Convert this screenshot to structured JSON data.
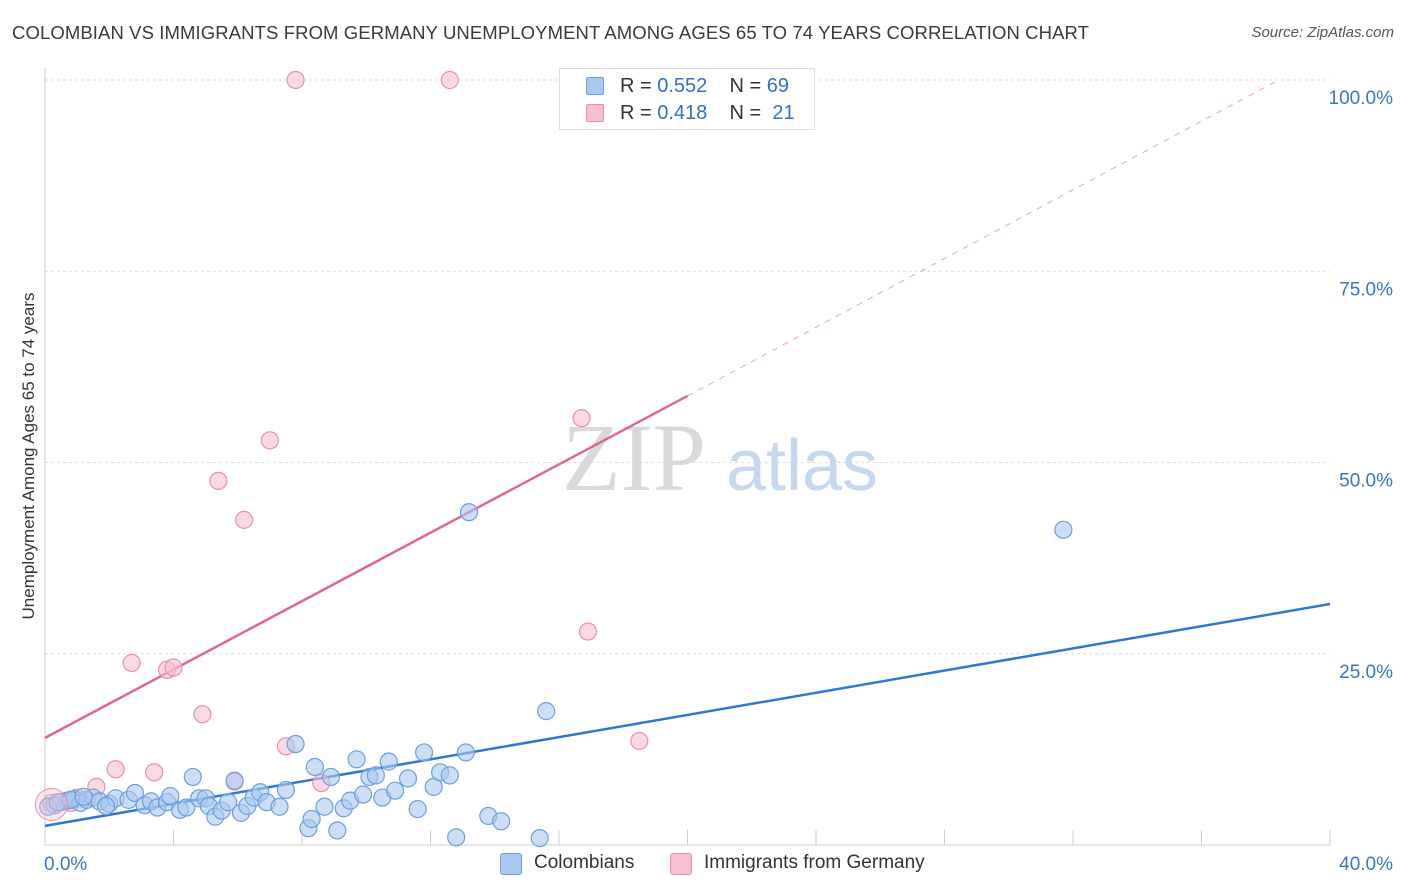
{
  "title": "COLOMBIAN VS IMMIGRANTS FROM GERMANY UNEMPLOYMENT AMONG AGES 65 TO 74 YEARS CORRELATION CHART",
  "source": "Source: ZipAtlas.com",
  "watermark": {
    "zip": "ZIP",
    "atlas": "atlas"
  },
  "legend": {
    "r_label": "R = ",
    "n_label": "N = ",
    "series": [
      {
        "r": "0.552",
        "n": "69"
      },
      {
        "r": "0.418",
        "n": "21"
      }
    ]
  },
  "bottom_legend": [
    "Colombians",
    "Immigrants from Germany"
  ],
  "colors": {
    "blue_fill": "#a9c8f0",
    "blue_stroke": "#6e9fdc",
    "blue_line": "#2e78d2",
    "pink_fill": "#f7c0d2",
    "pink_stroke": "#e88fae",
    "pink_line": "#e0668e",
    "axis_text": "#3a75c4",
    "grid": "#dcdcdc"
  },
  "chart_data": {
    "type": "scatter",
    "title": "COLOMBIAN VS IMMIGRANTS FROM GERMANY UNEMPLOYMENT AMONG AGES 65 TO 74 YEARS CORRELATION CHART",
    "xlabel": "",
    "ylabel": "Unemployment Among Ages 65 to 74 years",
    "xlim": [
      0,
      40
    ],
    "ylim": [
      0,
      100
    ],
    "x_tick_labels": [
      {
        "value": 0,
        "label": "0.0%"
      },
      {
        "value": 40,
        "label": "40.0%"
      }
    ],
    "y_tick_labels": [
      {
        "value": 25,
        "label": "25.0%"
      },
      {
        "value": 50,
        "label": "50.0%"
      },
      {
        "value": 75,
        "label": "75.0%"
      },
      {
        "value": 100,
        "label": "100.0%"
      }
    ],
    "x_minor_ticks": [
      4,
      8,
      12,
      16,
      20,
      24,
      28,
      32,
      36,
      40
    ],
    "series": [
      {
        "name": "Colombians",
        "color": "#6e9fdc",
        "points": [
          [
            0.3,
            5.2
          ],
          [
            0.5,
            5.6
          ],
          [
            0.7,
            5.8
          ],
          [
            0.9,
            6.0
          ],
          [
            1.1,
            5.5
          ],
          [
            1.3,
            5.9
          ],
          [
            1.5,
            6.2
          ],
          [
            1.7,
            5.7
          ],
          [
            2.0,
            5.4
          ],
          [
            2.2,
            6.1
          ],
          [
            2.6,
            5.9
          ],
          [
            2.8,
            6.8
          ],
          [
            3.1,
            5.2
          ],
          [
            3.3,
            5.7
          ],
          [
            3.5,
            4.9
          ],
          [
            3.8,
            5.6
          ],
          [
            3.9,
            6.4
          ],
          [
            4.2,
            4.6
          ],
          [
            4.4,
            4.9
          ],
          [
            4.6,
            8.9
          ],
          [
            4.8,
            6.1
          ],
          [
            5.0,
            6.1
          ],
          [
            5.1,
            5.1
          ],
          [
            5.3,
            3.7
          ],
          [
            5.5,
            4.5
          ],
          [
            5.7,
            5.6
          ],
          [
            5.9,
            8.4
          ],
          [
            6.1,
            4.2
          ],
          [
            6.3,
            5.1
          ],
          [
            6.5,
            6.2
          ],
          [
            6.7,
            6.9
          ],
          [
            6.9,
            5.6
          ],
          [
            7.3,
            5.0
          ],
          [
            7.5,
            7.2
          ],
          [
            7.8,
            13.2
          ],
          [
            8.2,
            2.2
          ],
          [
            8.3,
            3.4
          ],
          [
            8.4,
            10.2
          ],
          [
            8.7,
            5.0
          ],
          [
            8.9,
            8.9
          ],
          [
            9.1,
            1.9
          ],
          [
            9.3,
            4.8
          ],
          [
            9.5,
            5.8
          ],
          [
            9.7,
            11.2
          ],
          [
            9.9,
            6.6
          ],
          [
            10.1,
            8.9
          ],
          [
            10.3,
            9.1
          ],
          [
            10.5,
            6.2
          ],
          [
            10.7,
            10.9
          ],
          [
            10.9,
            7.1
          ],
          [
            11.3,
            8.7
          ],
          [
            11.6,
            4.7
          ],
          [
            11.8,
            12.1
          ],
          [
            12.1,
            7.6
          ],
          [
            12.3,
            9.5
          ],
          [
            12.6,
            9.1
          ],
          [
            12.8,
            1.0
          ],
          [
            13.1,
            12.1
          ],
          [
            13.2,
            43.5
          ],
          [
            13.8,
            3.8
          ],
          [
            14.2,
            3.1
          ],
          [
            15.4,
            0.9
          ],
          [
            15.6,
            17.5
          ],
          [
            31.7,
            41.2
          ],
          [
            0.1,
            5.0
          ],
          [
            0.4,
            5.6
          ],
          [
            0.8,
            5.9
          ],
          [
            1.2,
            6.3
          ],
          [
            1.9,
            5.1
          ]
        ]
      },
      {
        "name": "Immigrants from Germany",
        "color": "#e88fae",
        "points": [
          [
            0.2,
            5.5
          ],
          [
            0.8,
            5.5
          ],
          [
            1.0,
            6.2
          ],
          [
            1.6,
            7.6
          ],
          [
            2.2,
            9.9
          ],
          [
            2.7,
            23.8
          ],
          [
            3.4,
            9.5
          ],
          [
            3.8,
            22.9
          ],
          [
            4.0,
            23.2
          ],
          [
            4.9,
            17.1
          ],
          [
            5.4,
            47.6
          ],
          [
            5.9,
            8.3
          ],
          [
            6.2,
            42.5
          ],
          [
            7.0,
            52.9
          ],
          [
            7.5,
            12.9
          ],
          [
            7.8,
            100.0
          ],
          [
            8.6,
            8.1
          ],
          [
            12.6,
            100.0
          ],
          [
            16.7,
            55.8
          ],
          [
            16.9,
            27.9
          ],
          [
            18.5,
            13.6
          ]
        ]
      }
    ],
    "trendlines": [
      {
        "series": "Colombians",
        "x0": 0,
        "y0": 2.5,
        "x1": 40,
        "y1": 31.5,
        "style": "solid"
      },
      {
        "series": "Immigrants from Germany",
        "x0": 0,
        "y0": 14.0,
        "x1": 20,
        "y1": 58.7,
        "style": "solid"
      },
      {
        "series": "Immigrants from Germany",
        "x0": 20,
        "y0": 58.7,
        "x1": 38.4,
        "y1": 100.0,
        "style": "dashed"
      }
    ]
  }
}
